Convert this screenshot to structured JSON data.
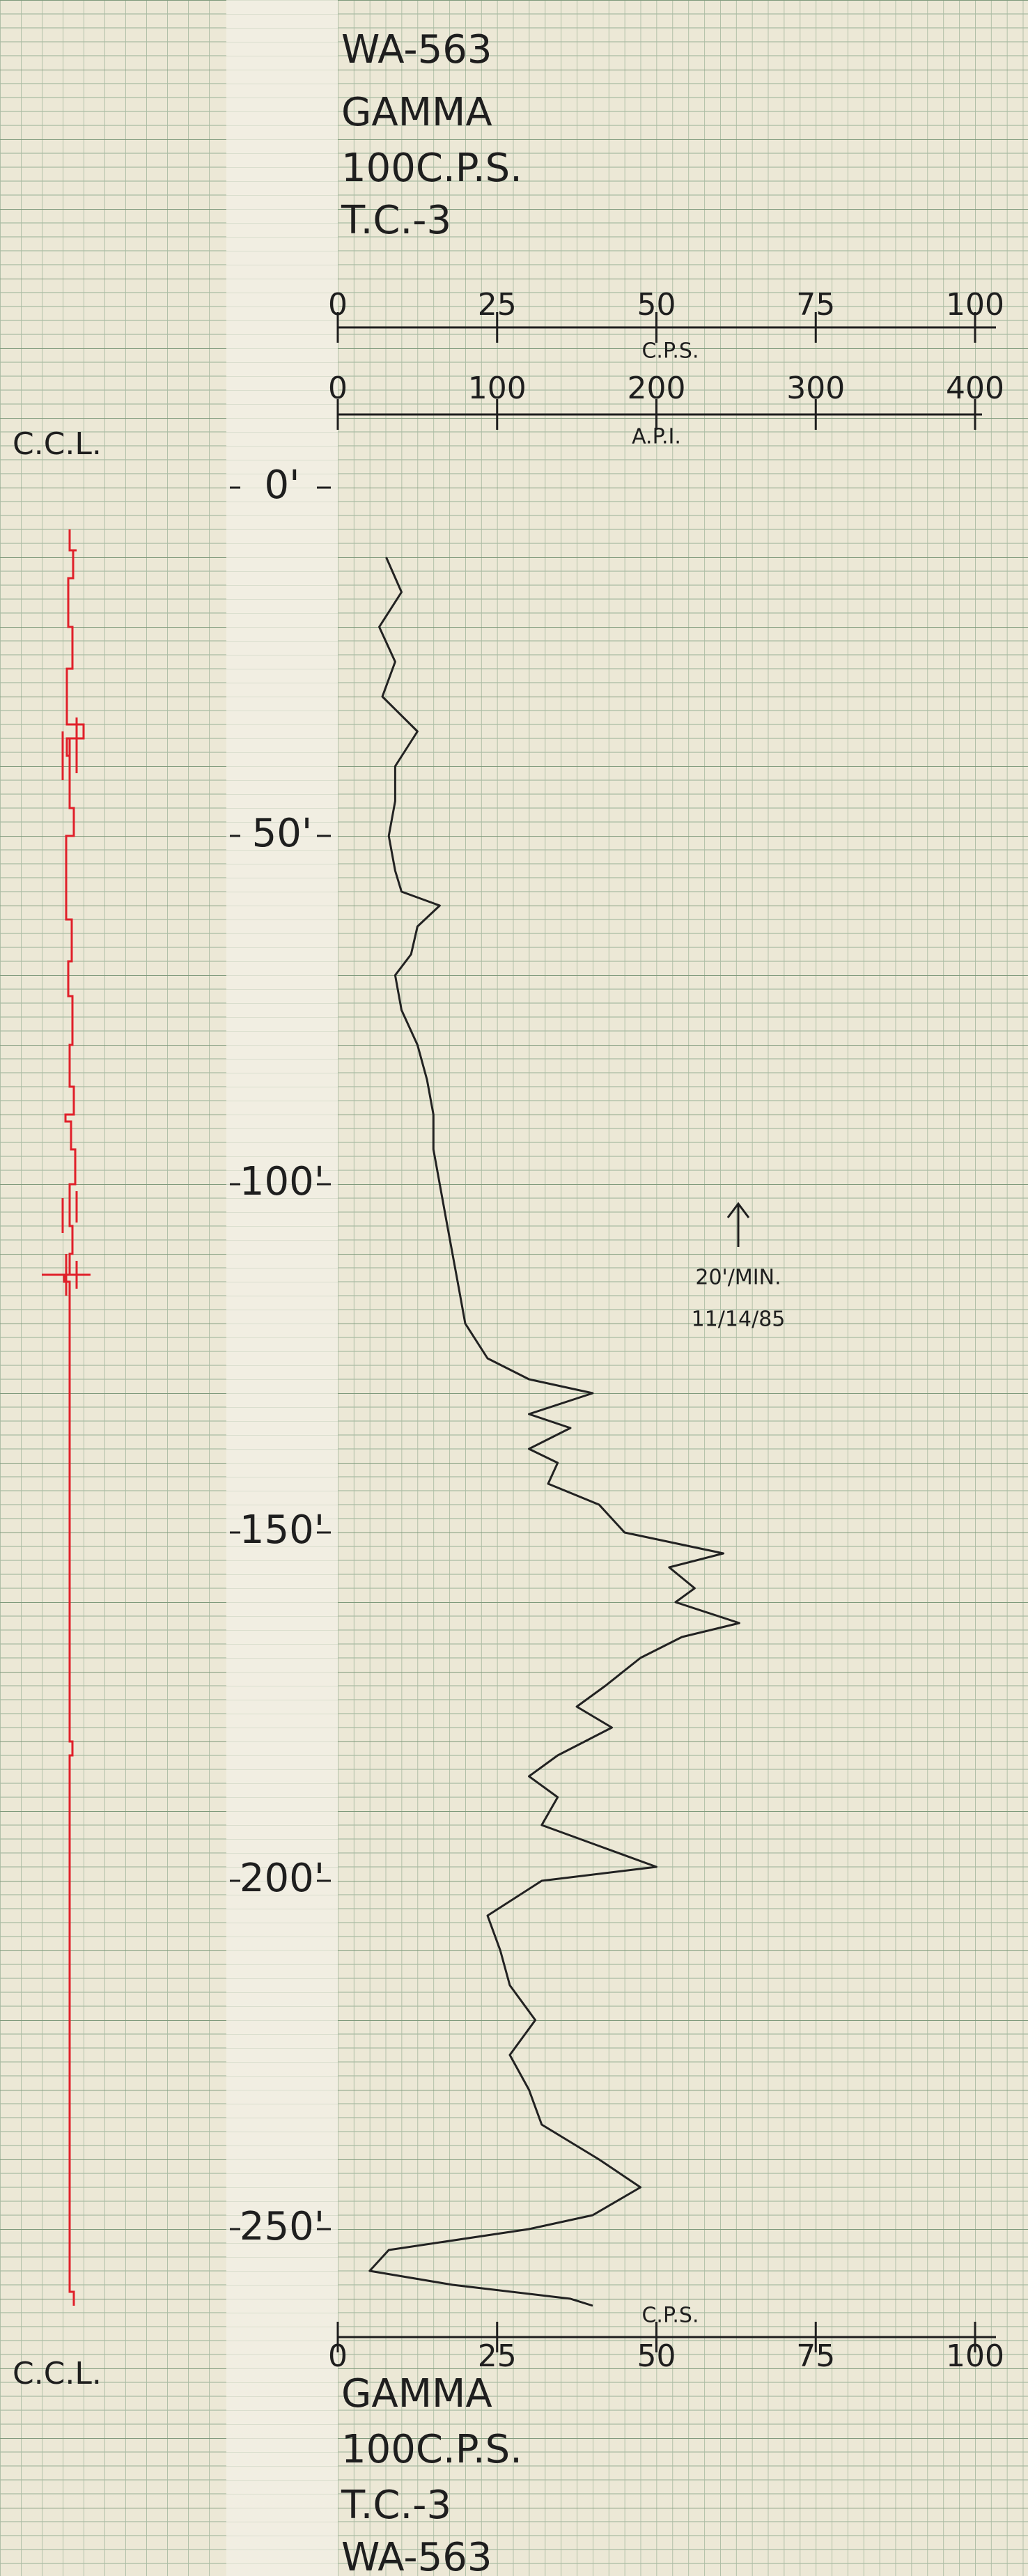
{
  "chart_data": {
    "type": "line",
    "orientation": "vertical",
    "labels": [
      "WA-563",
      "GAMMA",
      "100C.P.S.",
      "T.C.-3"
    ],
    "track_label": "C.C.L.",
    "y_label": "C.P.S.",
    "y2_label": "A.P.I.",
    "annotation": [
      "20'/MIN.",
      "11/14/85"
    ],
    "xlim": [
      0,
      260
    ],
    "xticks": [
      {
        "value": 0,
        "label": "0'"
      },
      {
        "value": 50,
        "label": "50'"
      },
      {
        "value": 100,
        "label": "100'"
      },
      {
        "value": 150,
        "label": "150'"
      },
      {
        "value": 200,
        "label": "200'"
      },
      {
        "value": 250,
        "label": "250'"
      }
    ],
    "ylim": [
      0,
      100
    ],
    "yticks": [
      0,
      25,
      50,
      75,
      100
    ],
    "y2lim": [
      0,
      400
    ],
    "y2ticks": [
      0,
      100,
      200,
      300,
      400
    ],
    "x": [
      10,
      15,
      20,
      25,
      30,
      35,
      40,
      45,
      50,
      55,
      58,
      60,
      63,
      67,
      70,
      75,
      80,
      85,
      90,
      95,
      100,
      105,
      110,
      115,
      120,
      125,
      128,
      130,
      133,
      135,
      138,
      140,
      143,
      146,
      150,
      153,
      155,
      158,
      160,
      163,
      165,
      168,
      172,
      175,
      178,
      182,
      185,
      188,
      192,
      195,
      198,
      200,
      205,
      210,
      215,
      220,
      225,
      230,
      235,
      240,
      244,
      248,
      250,
      253,
      256,
      258,
      260,
      261
    ],
    "series": [
      {
        "name": "GAMMA",
        "color": "#222222",
        "values": [
          7.6,
          10,
          6.5,
          9,
          7,
          12.5,
          9,
          9,
          8,
          9,
          10,
          16,
          12.5,
          11.5,
          9,
          10,
          12.5,
          14,
          15,
          15,
          16,
          17,
          18,
          19,
          20,
          23.5,
          30,
          40,
          30,
          36.5,
          30,
          34.5,
          33,
          41,
          45,
          60.5,
          52,
          56,
          53,
          63,
          54,
          47.5,
          42,
          37.5,
          43,
          34.5,
          30,
          34.5,
          32,
          41,
          50,
          32,
          23.5,
          25.5,
          27,
          31,
          27,
          30,
          32,
          41,
          47.5,
          40,
          30,
          8,
          5,
          18,
          36.5,
          40
        ]
      }
    ],
    "grid": true
  }
}
